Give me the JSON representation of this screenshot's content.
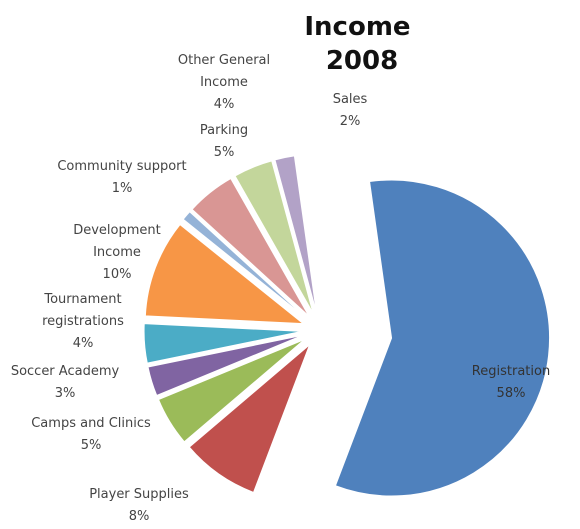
{
  "chart_data": {
    "type": "pie",
    "title": "Income 2008",
    "title_lines": [
      "Income",
      "2008"
    ],
    "slices": [
      {
        "label": "Registration",
        "label_lines": [
          "Registration"
        ],
        "percent": 58,
        "percent_text": "58%",
        "color": "#4f81bd"
      },
      {
        "label": "Player Supplies",
        "label_lines": [
          "Player Supplies"
        ],
        "percent": 8,
        "percent_text": "8%",
        "color": "#c0504d"
      },
      {
        "label": "Camps and Clinics",
        "label_lines": [
          "Camps and Clinics"
        ],
        "percent": 5,
        "percent_text": "5%",
        "color": "#9bbb59"
      },
      {
        "label": "Soccer Academy",
        "label_lines": [
          "Soccer Academy"
        ],
        "percent": 3,
        "percent_text": "3%",
        "color": "#8064a2"
      },
      {
        "label": "Tournament registrations",
        "label_lines": [
          "Tournament",
          "registrations"
        ],
        "percent": 4,
        "percent_text": "4%",
        "color": "#4bacc6"
      },
      {
        "label": "Development Income",
        "label_lines": [
          "Development",
          "Income"
        ],
        "percent": 10,
        "percent_text": "10%",
        "color": "#f79646"
      },
      {
        "label": "Community support",
        "label_lines": [
          "Community support"
        ],
        "percent": 1,
        "percent_text": "1%",
        "color": "#95b3d7"
      },
      {
        "label": "Parking",
        "label_lines": [
          "Parking"
        ],
        "percent": 5,
        "percent_text": "5%",
        "color": "#d99694"
      },
      {
        "label": "Other General Income",
        "label_lines": [
          "Other General",
          "Income"
        ],
        "percent": 4,
        "percent_text": "4%",
        "color": "#c3d69b"
      },
      {
        "label": "Sales",
        "label_lines": [
          "Sales"
        ],
        "percent": 2,
        "percent_text": "2%",
        "color": "#b2a2c7"
      }
    ],
    "legend": "none"
  }
}
